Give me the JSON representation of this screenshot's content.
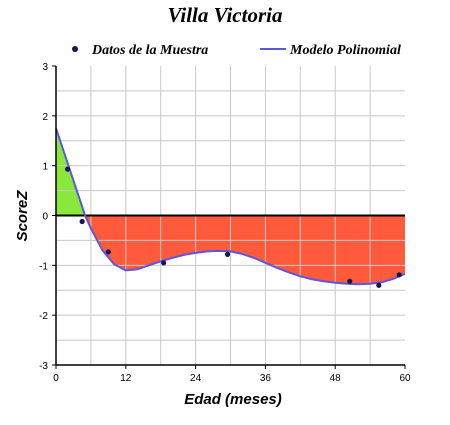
{
  "chart_data": {
    "type": "line",
    "title": "Villa Victoria",
    "xlabel": "Edad (meses)",
    "ylabel": "ScoreZ",
    "xlim": [
      0,
      60
    ],
    "ylim": [
      -3,
      3
    ],
    "xticks": [
      0,
      12,
      24,
      36,
      48,
      60
    ],
    "yticks": [
      -3,
      -2,
      -1,
      0,
      1,
      2,
      3
    ],
    "grid": true,
    "legend_position": "top",
    "series": [
      {
        "name": "Datos de la Muestra",
        "kind": "scatter",
        "color": "#14145a",
        "x": [
          2,
          4.5,
          9,
          18.5,
          29.5,
          50.5,
          55.5,
          59
        ],
        "y": [
          0.93,
          -0.12,
          -0.73,
          -0.95,
          -0.78,
          -1.32,
          -1.4,
          -1.19
        ]
      },
      {
        "name": "Modelo Polinomial",
        "kind": "line",
        "color": "#5b57e0",
        "x": [
          0,
          2,
          4,
          5,
          6,
          8,
          10,
          12,
          14,
          16,
          18,
          20,
          22,
          24,
          26,
          28,
          30,
          32,
          34,
          36,
          38,
          40,
          42,
          44,
          46,
          48,
          50,
          52,
          54,
          56,
          58,
          60
        ],
        "y": [
          1.75,
          1.05,
          0.35,
          0.0,
          -0.26,
          -0.7,
          -0.98,
          -1.1,
          -1.08,
          -1.0,
          -0.92,
          -0.85,
          -0.79,
          -0.75,
          -0.72,
          -0.71,
          -0.72,
          -0.77,
          -0.85,
          -0.95,
          -1.05,
          -1.14,
          -1.22,
          -1.28,
          -1.32,
          -1.35,
          -1.37,
          -1.38,
          -1.37,
          -1.34,
          -1.27,
          -1.17
        ]
      }
    ],
    "fill_positive_color": "#8ae83a",
    "fill_negative_color": "#ff5a3c"
  }
}
